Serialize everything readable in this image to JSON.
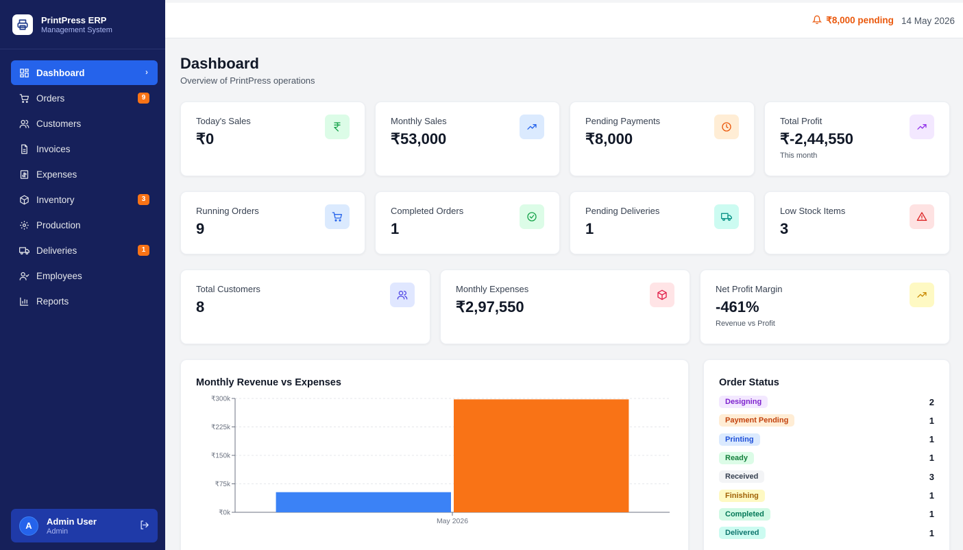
{
  "app": {
    "name": "PrintPress ERP",
    "subtitle": "Management System"
  },
  "sidebar": {
    "items": [
      {
        "label": "Dashboard",
        "icon": "dashboard-icon",
        "active": true
      },
      {
        "label": "Orders",
        "icon": "cart-icon",
        "badge": "9"
      },
      {
        "label": "Customers",
        "icon": "users-icon"
      },
      {
        "label": "Invoices",
        "icon": "file-icon"
      },
      {
        "label": "Expenses",
        "icon": "receipt-icon"
      },
      {
        "label": "Inventory",
        "icon": "box-icon",
        "badge": "3"
      },
      {
        "label": "Production",
        "icon": "gear-icon"
      },
      {
        "label": "Deliveries",
        "icon": "truck-icon",
        "badge": "1"
      },
      {
        "label": "Employees",
        "icon": "user-check-icon"
      },
      {
        "label": "Reports",
        "icon": "bar-chart-icon"
      }
    ]
  },
  "user": {
    "initial": "A",
    "name": "Admin User",
    "role": "Admin"
  },
  "topbar": {
    "pending": "₹8,000 pending",
    "date": "14 May 2026"
  },
  "page": {
    "title": "Dashboard",
    "subtitle": "Overview of PrintPress operations"
  },
  "stats_row1": [
    {
      "label": "Today's Sales",
      "value": "₹0",
      "note": "",
      "icon": "rupee-icon",
      "icon_color": "#16a34a",
      "icon_bg": "#dcfce7"
    },
    {
      "label": "Monthly Sales",
      "value": "₹53,000",
      "note": "",
      "icon": "trending-up-icon",
      "icon_color": "#2563eb",
      "icon_bg": "#dbeafe"
    },
    {
      "label": "Pending Payments",
      "value": "₹8,000",
      "note": "",
      "icon": "clock-icon",
      "icon_color": "#ea580c",
      "icon_bg": "#ffedd5"
    },
    {
      "label": "Total Profit",
      "value": "₹-2,44,550",
      "note": "This month",
      "icon": "trending-up-icon",
      "icon_color": "#9333ea",
      "icon_bg": "#f3e8ff"
    }
  ],
  "stats_row2": [
    {
      "label": "Running Orders",
      "value": "9",
      "icon": "cart-icon",
      "icon_color": "#2563eb",
      "icon_bg": "#dbeafe"
    },
    {
      "label": "Completed Orders",
      "value": "1",
      "icon": "check-circle-icon",
      "icon_color": "#16a34a",
      "icon_bg": "#dcfce7"
    },
    {
      "label": "Pending Deliveries",
      "value": "1",
      "icon": "truck-icon",
      "icon_color": "#0d9488",
      "icon_bg": "#ccfbf1"
    },
    {
      "label": "Low Stock Items",
      "value": "3",
      "icon": "alert-triangle-icon",
      "icon_color": "#dc2626",
      "icon_bg": "#fee2e2"
    }
  ],
  "stats_row3": [
    {
      "label": "Total Customers",
      "value": "8",
      "note": "",
      "icon": "users-icon",
      "icon_color": "#4f46e5",
      "icon_bg": "#e0e7ff"
    },
    {
      "label": "Monthly Expenses",
      "value": "₹2,97,550",
      "note": "",
      "icon": "box-icon",
      "icon_color": "#e11d48",
      "icon_bg": "#ffe4e6"
    },
    {
      "label": "Net Profit Margin",
      "value": "-461%",
      "note": "Revenue vs Profit",
      "icon": "trending-up-icon",
      "icon_color": "#ca8a04",
      "icon_bg": "#fef9c3"
    }
  ],
  "revenue_chart": {
    "title": "Monthly Revenue vs Expenses"
  },
  "chart_data": {
    "type": "bar",
    "title": "Monthly Revenue vs Expenses",
    "categories": [
      "May 2026"
    ],
    "series": [
      {
        "values": [
          53000
        ],
        "color": "#3b82f6"
      },
      {
        "values": [
          297550
        ],
        "color": "#f97316"
      }
    ],
    "ylim": [
      0,
      300000
    ],
    "yticks": [
      0,
      75000,
      150000,
      225000,
      300000
    ],
    "ytick_labels": [
      "₹0k",
      "₹75k",
      "₹150k",
      "₹225k",
      "₹300k"
    ],
    "grid": true
  },
  "order_status": {
    "title": "Order Status",
    "items": [
      {
        "label": "Designing",
        "count": "2",
        "fg": "#7e22ce",
        "bg": "#f3e8ff"
      },
      {
        "label": "Payment Pending",
        "count": "1",
        "fg": "#c2410c",
        "bg": "#ffedd5"
      },
      {
        "label": "Printing",
        "count": "1",
        "fg": "#1d4ed8",
        "bg": "#dbeafe"
      },
      {
        "label": "Ready",
        "count": "1",
        "fg": "#15803d",
        "bg": "#dcfce7"
      },
      {
        "label": "Received",
        "count": "3",
        "fg": "#374151",
        "bg": "#f3f4f6"
      },
      {
        "label": "Finishing",
        "count": "1",
        "fg": "#a16207",
        "bg": "#fef9c3"
      },
      {
        "label": "Completed",
        "count": "1",
        "fg": "#047857",
        "bg": "#d1fae5"
      },
      {
        "label": "Delivered",
        "count": "1",
        "fg": "#0f766e",
        "bg": "#ccfbf1"
      }
    ]
  }
}
